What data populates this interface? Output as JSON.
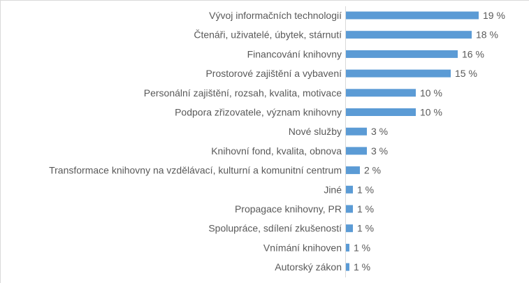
{
  "chart_data": {
    "type": "bar",
    "orientation": "horizontal",
    "title": "",
    "xlabel": "",
    "ylabel": "",
    "xlim": [
      0,
      20
    ],
    "grid": false,
    "legend": "none",
    "bar_color": "#5b9bd5",
    "categories": [
      "Vývoj informačních technologií",
      "Čtenáři, uživatelé, úbytek, stárnutí",
      "Financování knihovny",
      "Prostorové zajištění a vybavení",
      "Personální zajištění, rozsah, kvalita, motivace",
      "Podpora zřizovatele, význam knihovny",
      "Nové služby",
      "Knihovní fond, kvalita, obnova",
      "Transformace knihovny na vzdělávací, kulturní a komunitní centrum",
      "Jiné",
      "Propagace knihovny, PR",
      "Spolupráce, sdílení zkušeností",
      "Vnímání knihoven",
      "Autorský zákon"
    ],
    "values": [
      19,
      18,
      16,
      15,
      10,
      10,
      3,
      3,
      2,
      1,
      1,
      1,
      0.5,
      0.5
    ],
    "data_labels": [
      "19 %",
      "18 %",
      "16 %",
      "15 %",
      "10 %",
      "10 %",
      "3 %",
      "3 %",
      "2 %",
      "1 %",
      "1 %",
      "1 %",
      "1 %",
      "1 %"
    ]
  }
}
